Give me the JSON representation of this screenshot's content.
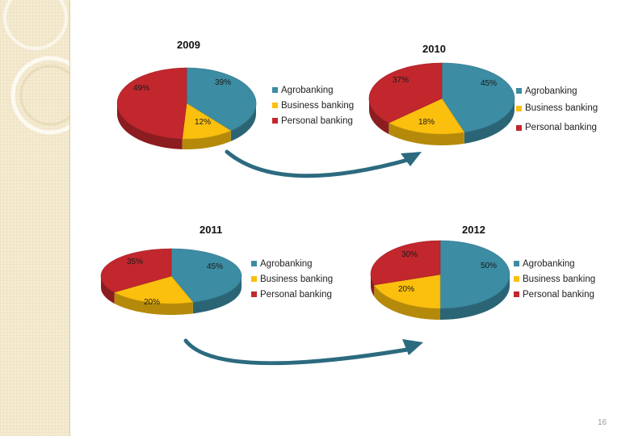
{
  "page": {
    "number": "16"
  },
  "colors": {
    "Agrobanking": "#3c8ca3",
    "Business banking": "#fbbf0e",
    "Personal banking": "#c1272d",
    "arrow": "#2c6a7f"
  },
  "chart_data": [
    {
      "type": "pie",
      "title": "2009",
      "labels": [
        "Agrobanking",
        "Business banking",
        "Personal banking"
      ],
      "values": [
        39,
        12,
        49
      ],
      "value_labels": [
        "39%",
        "12%",
        "49%"
      ]
    },
    {
      "type": "pie",
      "title": "2010",
      "labels": [
        "Agrobanking",
        "Business banking",
        "Personal banking"
      ],
      "values": [
        45,
        18,
        37
      ],
      "value_labels": [
        "45%",
        "18%",
        "37%"
      ]
    },
    {
      "type": "pie",
      "title": "2011",
      "labels": [
        "Agrobanking",
        "Business banking",
        "Personal banking"
      ],
      "values": [
        45,
        20,
        35
      ],
      "value_labels": [
        "45%",
        "20%",
        "35%"
      ]
    },
    {
      "type": "pie",
      "title": "2012",
      "labels": [
        "Agrobanking",
        "Business banking",
        "Personal banking"
      ],
      "values": [
        50,
        20,
        30
      ],
      "value_labels": [
        "50%",
        "20%",
        "30%"
      ]
    }
  ]
}
